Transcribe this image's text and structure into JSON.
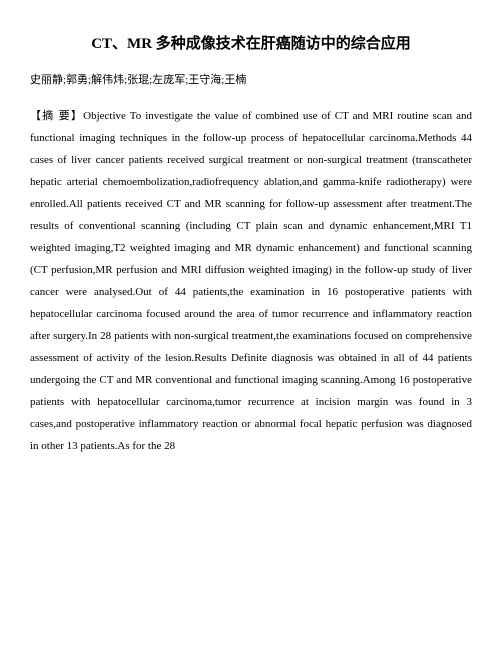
{
  "paper": {
    "title": "CT、MR 多种成像技术在肝癌随访中的综合应用",
    "title_fontsize": 15,
    "title_weight": "bold",
    "authors": "史丽静;郭勇;解伟炜;张琨;左庞军;王守海;王楠",
    "authors_fontsize": 11,
    "abstract_label": "【摘 要】",
    "abstract_body": "Objective To investigate the value of combined use of CT and MRI routine scan and functional imaging techniques in the follow-up process of hepatocellular carcinoma.Methods 44 cases of liver cancer patients received surgical treatment or non-surgical treatment (transcatheter hepatic arterial chemoembolization,radiofrequency ablation,and gamma-knife radiotherapy) were enrolled.All patients received CT and MR scanning for follow-up assessment after treatment.The results of conventional scanning (including CT plain scan and dynamic enhancement,MRI T1 weighted imaging,T2 weighted imaging and MR dynamic enhancement) and functional scanning (CT perfusion,MR perfusion and MRI diffusion weighted imaging) in the follow-up study of liver cancer were analysed.Out of 44 patients,the examination in 16 postoperative patients with hepatocellular carcinoma focused around the area of tumor recurrence and inflammatory reaction after surgery.In 28 patients with non-surgical treatment,the examinations focused on comprehensive assessment of activity of the lesion.Results Definite diagnosis was obtained in all of 44 patients undergoing the CT and MR conventional and functional imaging scanning.Among 16 postoperative patients with hepatocellular carcinoma,tumor recurrence at incision margin was found in 3 cases,and postoperative inflammatory reaction or abnormal focal hepatic perfusion was diagnosed in other 13 patients.As for the 28",
    "abstract_fontsize": 11,
    "line_height": 2.0,
    "text_color": "#000000",
    "background_color": "#ffffff"
  }
}
